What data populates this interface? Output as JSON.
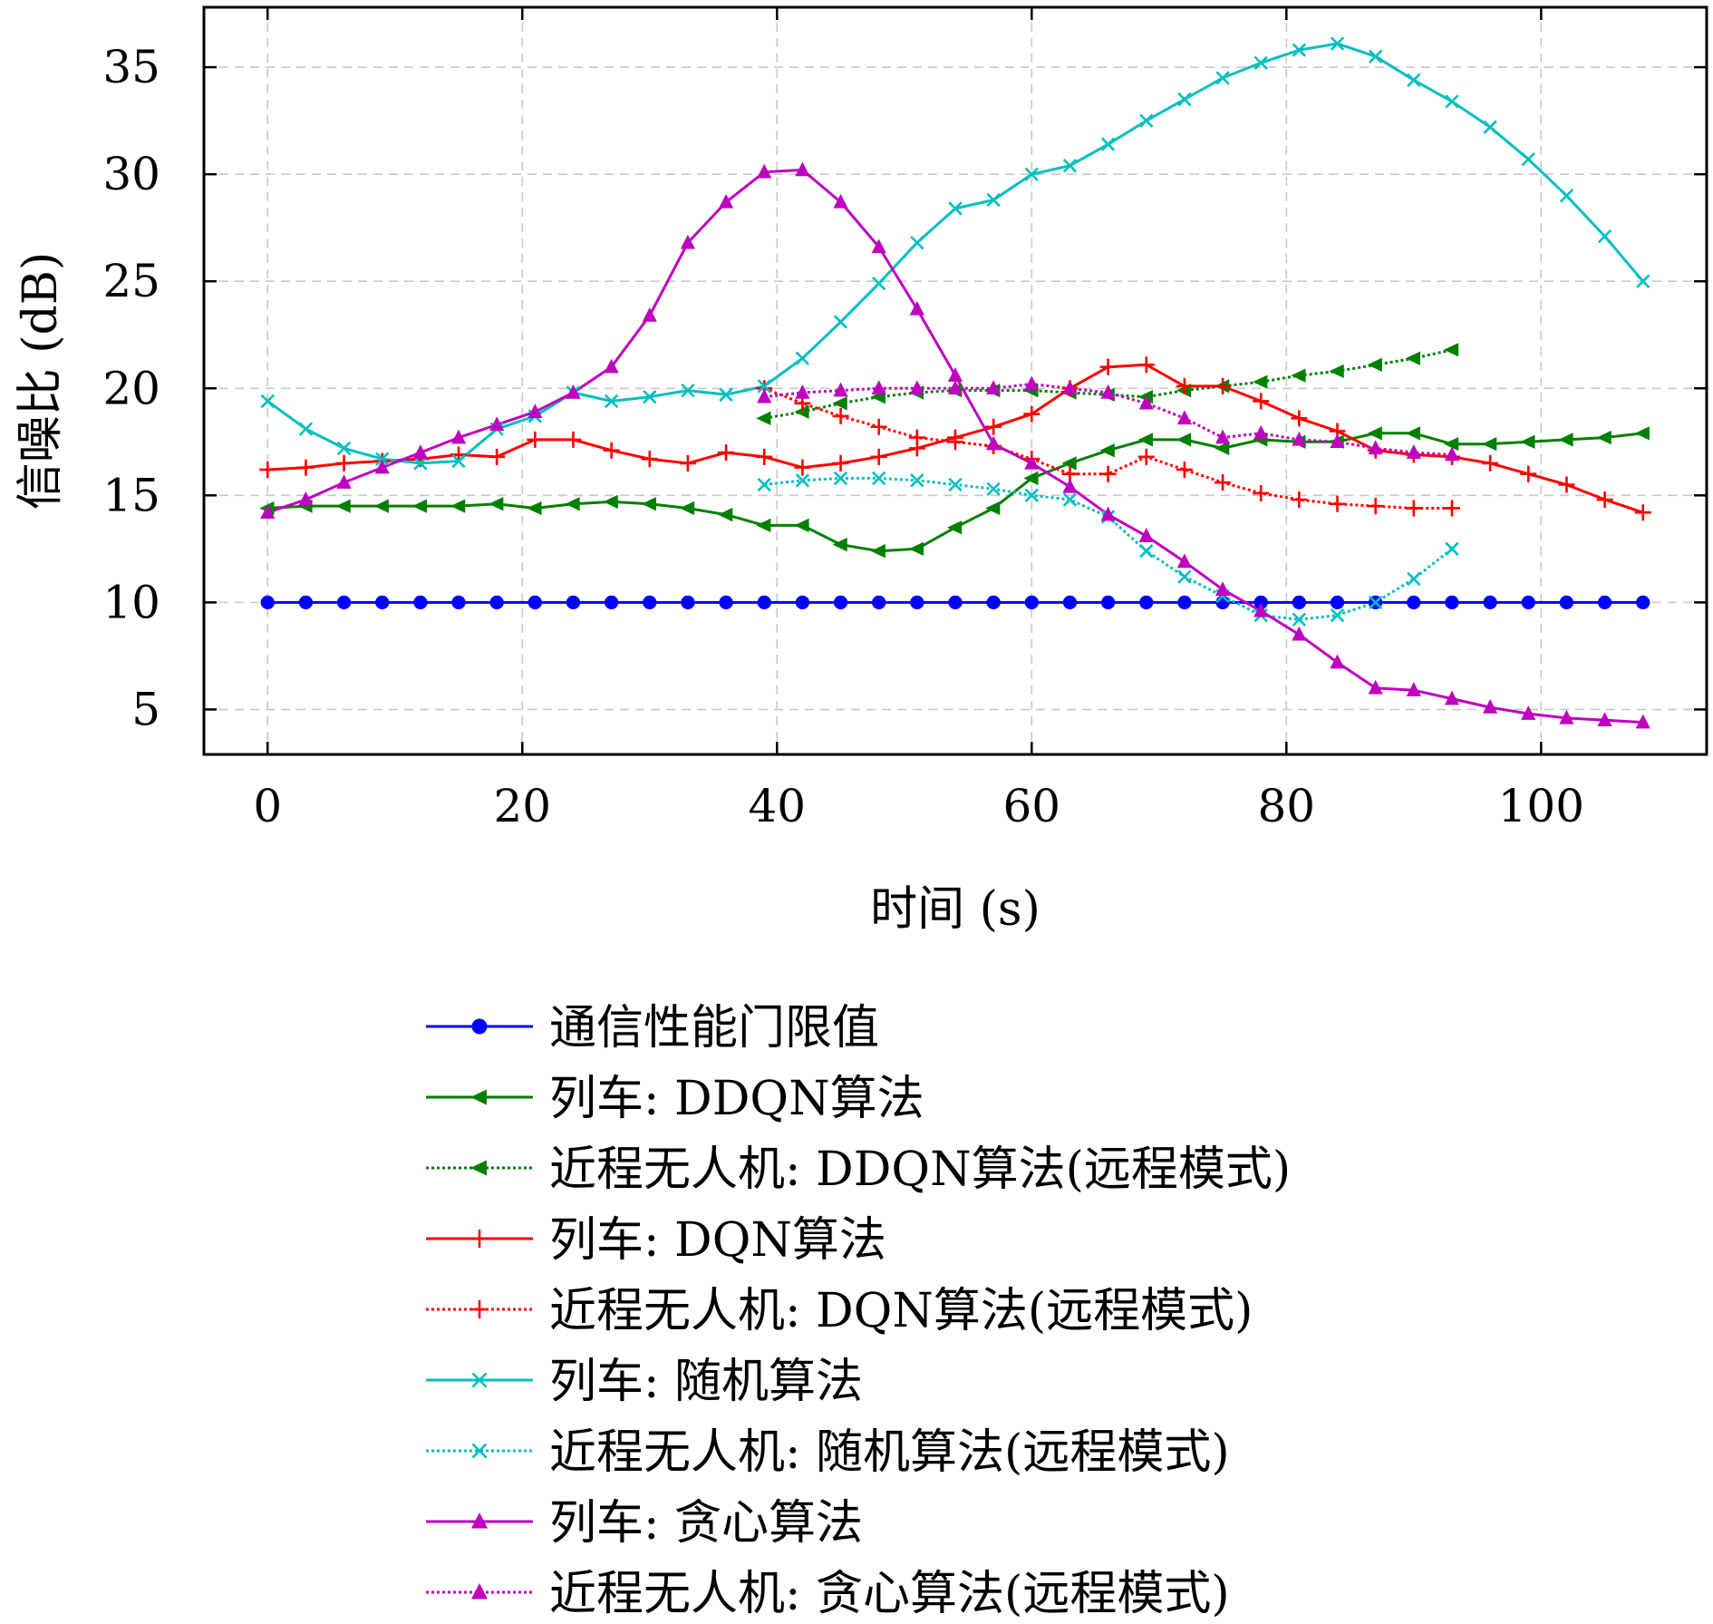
{
  "chart_data": {
    "type": "line",
    "xlabel": "时间 (s)",
    "ylabel": "信噪比 (dB)",
    "xlim": [
      -5,
      113
    ],
    "ylim": [
      2.9,
      37.8
    ],
    "xticks": [
      0,
      20,
      40,
      60,
      80,
      100
    ],
    "yticks": [
      5,
      10,
      15,
      20,
      25,
      30,
      35
    ],
    "xtick_labels": [
      "0",
      "20",
      "40",
      "60",
      "80",
      "100"
    ],
    "ytick_labels": [
      "5",
      "10",
      "15",
      "20",
      "25",
      "30",
      "35"
    ],
    "grid": true,
    "legend_position": "below",
    "series": [
      {
        "name": "通信性能门限值",
        "color": "#0000ff",
        "style": "solid",
        "marker": "circle",
        "x": [
          0,
          3,
          6,
          9,
          12,
          15,
          18,
          21,
          24,
          27,
          30,
          33,
          36,
          39,
          42,
          45,
          48,
          51,
          54,
          57,
          60,
          63,
          66,
          69,
          72,
          75,
          78,
          81,
          84,
          87,
          90,
          93,
          96,
          99,
          102,
          105,
          108
        ],
        "y": [
          10,
          10,
          10,
          10,
          10,
          10,
          10,
          10,
          10,
          10,
          10,
          10,
          10,
          10,
          10,
          10,
          10,
          10,
          10,
          10,
          10,
          10,
          10,
          10,
          10,
          10,
          10,
          10,
          10,
          10,
          10,
          10,
          10,
          10,
          10,
          10,
          10
        ]
      },
      {
        "name": "列车: DDQN算法",
        "color": "#008000",
        "style": "solid",
        "marker": "triangle-left",
        "x": [
          0,
          3,
          6,
          9,
          12,
          15,
          18,
          21,
          24,
          27,
          30,
          33,
          36,
          39,
          42,
          45,
          48,
          51,
          54,
          57,
          60,
          63,
          66,
          69,
          72,
          75,
          78,
          81,
          84,
          87,
          90,
          93,
          96,
          99,
          102,
          105,
          108
        ],
        "y": [
          14.4,
          14.5,
          14.5,
          14.5,
          14.5,
          14.5,
          14.6,
          14.4,
          14.6,
          14.7,
          14.6,
          14.4,
          14.1,
          13.6,
          13.6,
          12.7,
          12.4,
          12.5,
          13.5,
          14.4,
          15.8,
          16.5,
          17.1,
          17.6,
          17.6,
          17.2,
          17.6,
          17.5,
          17.5,
          17.9,
          17.9,
          17.4,
          17.4,
          17.5,
          17.6,
          17.7,
          17.9
        ]
      },
      {
        "name": "近程无人机: DDQN算法(远程模式)",
        "color": "#008000",
        "style": "dotted",
        "marker": "triangle-left",
        "x": [
          39,
          42,
          45,
          48,
          51,
          54,
          57,
          60,
          63,
          66,
          69,
          72,
          75,
          78,
          81,
          84,
          87,
          90,
          93
        ],
        "y": [
          18.6,
          18.9,
          19.3,
          19.6,
          19.8,
          19.9,
          19.9,
          19.9,
          19.8,
          19.7,
          19.6,
          19.9,
          20.1,
          20.3,
          20.6,
          20.8,
          21.1,
          21.4,
          21.8
        ]
      },
      {
        "name": "列车: DQN算法",
        "color": "#ff0000",
        "style": "solid",
        "marker": "plus",
        "x": [
          0,
          3,
          6,
          9,
          12,
          15,
          18,
          21,
          24,
          27,
          30,
          33,
          36,
          39,
          42,
          45,
          48,
          51,
          54,
          57,
          60,
          63,
          66,
          69,
          72,
          75,
          78,
          81,
          84,
          87,
          90,
          93,
          96,
          99,
          102,
          105,
          108
        ],
        "y": [
          16.2,
          16.3,
          16.5,
          16.6,
          16.7,
          16.9,
          16.8,
          17.6,
          17.6,
          17.1,
          16.7,
          16.5,
          17.0,
          16.8,
          16.3,
          16.5,
          16.8,
          17.2,
          17.7,
          18.2,
          18.8,
          20.0,
          21.0,
          21.1,
          20.1,
          20.1,
          19.4,
          18.6,
          18.0,
          17.1,
          16.9,
          16.8,
          16.5,
          16.0,
          15.5,
          14.8,
          14.2
        ]
      },
      {
        "name": "近程无人机: DQN算法(远程模式)",
        "color": "#ff0000",
        "style": "dotted",
        "marker": "plus",
        "x": [
          39,
          42,
          45,
          48,
          51,
          54,
          57,
          60,
          63,
          66,
          69,
          72,
          75,
          78,
          81,
          84,
          87,
          90,
          93
        ],
        "y": [
          20.0,
          19.3,
          18.7,
          18.2,
          17.7,
          17.5,
          17.3,
          16.7,
          16.0,
          16.0,
          16.8,
          16.2,
          15.6,
          15.1,
          14.8,
          14.6,
          14.5,
          14.4,
          14.4
        ]
      },
      {
        "name": "列车: 随机算法",
        "color": "#00bfbf",
        "style": "solid",
        "marker": "x",
        "x": [
          0,
          3,
          6,
          9,
          12,
          15,
          18,
          21,
          24,
          27,
          30,
          33,
          36,
          39,
          42,
          45,
          48,
          51,
          54,
          57,
          60,
          63,
          66,
          69,
          72,
          75,
          78,
          81,
          84,
          87,
          90,
          93,
          96,
          99,
          102,
          105,
          108
        ],
        "y": [
          19.4,
          18.1,
          17.2,
          16.7,
          16.5,
          16.6,
          18.1,
          18.7,
          19.8,
          19.4,
          19.6,
          19.9,
          19.7,
          20.1,
          21.4,
          23.1,
          24.9,
          26.8,
          28.4,
          28.8,
          30.0,
          30.4,
          31.4,
          32.5,
          33.5,
          34.5,
          35.2,
          35.8,
          36.1,
          35.5,
          34.4,
          33.4,
          32.2,
          30.7,
          29.0,
          27.1,
          25.0
        ]
      },
      {
        "name": "近程无人机: 随机算法(远程模式)",
        "color": "#00bfbf",
        "style": "dotted",
        "marker": "x",
        "x": [
          39,
          42,
          45,
          48,
          51,
          54,
          57,
          60,
          63,
          66,
          69,
          72,
          75,
          78,
          81,
          84,
          87,
          90,
          93
        ],
        "y": [
          15.5,
          15.7,
          15.8,
          15.8,
          15.7,
          15.5,
          15.3,
          15.0,
          14.8,
          14.0,
          12.4,
          11.2,
          10.3,
          9.4,
          9.2,
          9.4,
          10.0,
          11.1,
          12.5
        ]
      },
      {
        "name": "列车: 贪心算法",
        "color": "#bf00bf",
        "style": "solid",
        "marker": "triangle-up",
        "x": [
          0,
          3,
          6,
          9,
          12,
          15,
          18,
          21,
          24,
          27,
          30,
          33,
          36,
          39,
          42,
          45,
          48,
          51,
          54,
          57,
          60,
          63,
          66,
          69,
          72,
          75,
          78,
          81,
          84,
          87,
          90,
          93,
          96,
          99,
          102,
          105,
          108
        ],
        "y": [
          14.2,
          14.8,
          15.6,
          16.3,
          17.0,
          17.7,
          18.3,
          18.9,
          19.8,
          21.0,
          23.4,
          26.8,
          28.7,
          30.1,
          30.2,
          28.7,
          26.6,
          23.7,
          20.6,
          17.4,
          16.5,
          15.4,
          14.1,
          13.1,
          11.9,
          10.6,
          9.6,
          8.5,
          7.2,
          6.0,
          5.9,
          5.5,
          5.1,
          4.8,
          4.6,
          4.5,
          4.4
        ]
      },
      {
        "name": "近程无人机: 贪心算法(远程模式)",
        "color": "#bf00bf",
        "style": "dotted",
        "marker": "triangle-up",
        "x": [
          39,
          42,
          45,
          48,
          51,
          54,
          57,
          60,
          63,
          66,
          69,
          72,
          75,
          78,
          81,
          84,
          87,
          90,
          93
        ],
        "y": [
          19.6,
          19.8,
          19.9,
          20.0,
          20.0,
          20.0,
          20.0,
          20.2,
          20.0,
          19.8,
          19.3,
          18.6,
          17.7,
          17.9,
          17.6,
          17.5,
          17.2,
          17.0,
          16.9
        ]
      }
    ]
  }
}
